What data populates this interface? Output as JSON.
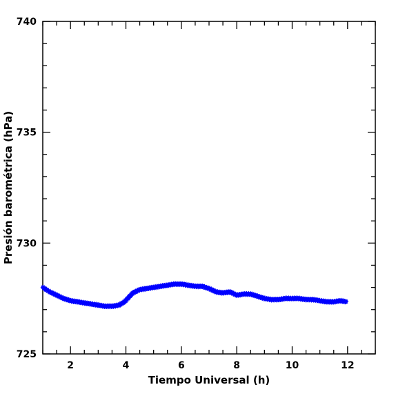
{
  "chart_data": {
    "type": "scatter",
    "xlabel": "Tiempo Universal (h)",
    "ylabel": "Presión barométrica (hPa)",
    "xlim": [
      1,
      13
    ],
    "ylim": [
      725,
      740
    ],
    "x_ticks": [
      2,
      4,
      6,
      8,
      10,
      12
    ],
    "y_ticks": [
      725,
      730,
      735,
      740
    ],
    "marker": "asterisk",
    "color": "#0000ff",
    "grid": false,
    "series": [
      {
        "x": [
          1.0,
          1.25,
          1.5,
          1.75,
          2.0,
          2.25,
          2.5,
          2.75,
          3.0,
          3.25,
          3.5,
          3.75,
          3.95,
          4.1,
          4.25,
          4.5,
          4.75,
          5.0,
          5.25,
          5.5,
          5.75,
          6.0,
          6.25,
          6.5,
          6.75,
          7.0,
          7.25,
          7.5,
          7.75,
          8.0,
          8.25,
          8.5,
          8.75,
          9.0,
          9.25,
          9.5,
          9.75,
          10.0,
          10.25,
          10.5,
          10.75,
          11.0,
          11.25,
          11.5,
          11.75,
          11.95
        ],
        "y": [
          728.0,
          727.8,
          727.65,
          727.5,
          727.4,
          727.35,
          727.3,
          727.25,
          727.2,
          727.15,
          727.15,
          727.2,
          727.35,
          727.55,
          727.75,
          727.9,
          727.95,
          728.0,
          728.05,
          728.1,
          728.15,
          728.15,
          728.1,
          728.05,
          728.05,
          727.95,
          727.8,
          727.75,
          727.8,
          727.65,
          727.7,
          727.7,
          727.6,
          727.5,
          727.45,
          727.45,
          727.5,
          727.5,
          727.5,
          727.45,
          727.45,
          727.4,
          727.35,
          727.35,
          727.4,
          727.35
        ]
      }
    ]
  }
}
